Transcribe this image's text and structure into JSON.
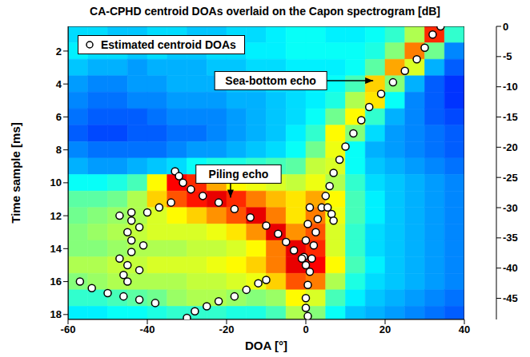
{
  "chart_data": {
    "type": "heatmap",
    "title": "CA-CPHD centroid DOAs overlaid on the Capon spectrogram [dB]",
    "x_label": "DOA [°]",
    "y_label": "Time sample [ms]",
    "xlim": [
      -60,
      40
    ],
    "xticks": [
      -60,
      -40,
      -20,
      0,
      20,
      40
    ],
    "ylim": [
      0.5,
      18.3
    ],
    "yticks": [
      2,
      4,
      6,
      8,
      10,
      12,
      14,
      16,
      18
    ],
    "grid": false,
    "legend": "upper left",
    "heatmap": {
      "x_bins": [
        -60,
        -55,
        -50,
        -45,
        -40,
        -35,
        -30,
        -25,
        -20,
        -15,
        -10,
        -5,
        0,
        5,
        10,
        15,
        20,
        25,
        30,
        35,
        40
      ],
      "y_bins": [
        0.5,
        1.5,
        2.5,
        3.5,
        4.5,
        5.5,
        6.5,
        7.5,
        8.5,
        9.5,
        10.5,
        11.5,
        12.5,
        13.5,
        14.5,
        15.5,
        16.5,
        17.5,
        18.3
      ],
      "values": [
        [
          -32,
          -32,
          -33,
          -33,
          -32,
          -32,
          -33,
          -33,
          -32,
          -32,
          -31,
          -30,
          -30,
          -31,
          -31,
          -30,
          -28,
          -22,
          -8,
          -28
        ],
        [
          -31,
          -32,
          -32,
          -33,
          -32,
          -33,
          -33,
          -32,
          -32,
          -31,
          -31,
          -30,
          -30,
          -30,
          -30,
          -29,
          -24,
          -12,
          -25,
          -36
        ],
        [
          -33,
          -34,
          -34,
          -35,
          -34,
          -34,
          -34,
          -33,
          -33,
          -32,
          -32,
          -31,
          -31,
          -31,
          -30,
          -26,
          -14,
          -20,
          -34,
          -38
        ],
        [
          -35,
          -36,
          -36,
          -35,
          -35,
          -34,
          -34,
          -34,
          -33,
          -33,
          -32,
          -32,
          -31,
          -30,
          -27,
          -16,
          -24,
          -34,
          -38,
          -40
        ],
        [
          -36,
          -37,
          -37,
          -36,
          -36,
          -35,
          -35,
          -35,
          -34,
          -34,
          -33,
          -32,
          -31,
          -29,
          -22,
          -17,
          -30,
          -36,
          -38,
          -40
        ],
        [
          -37,
          -38,
          -38,
          -38,
          -37,
          -36,
          -36,
          -36,
          -35,
          -34,
          -33,
          -32,
          -30,
          -25,
          -18,
          -28,
          -34,
          -36,
          -38,
          -39
        ],
        [
          -38,
          -39,
          -39,
          -38,
          -38,
          -37,
          -37,
          -36,
          -35,
          -34,
          -33,
          -31,
          -28,
          -18,
          -24,
          -32,
          -35,
          -36,
          -37,
          -38
        ],
        [
          -36,
          -37,
          -37,
          -37,
          -37,
          -36,
          -35,
          -35,
          -34,
          -33,
          -32,
          -30,
          -25,
          -19,
          -30,
          -34,
          -35,
          -36,
          -37,
          -38
        ],
        [
          -34,
          -35,
          -35,
          -34,
          -33,
          -32,
          -30,
          -29,
          -29,
          -28,
          -27,
          -26,
          -21,
          -20,
          -30,
          -33,
          -34,
          -35,
          -36,
          -37
        ],
        [
          -30,
          -30,
          -29,
          -27,
          -18,
          -6,
          -8,
          -14,
          -18,
          -19,
          -20,
          -21,
          -19,
          -22,
          -28,
          -32,
          -33,
          -34,
          -35,
          -36
        ],
        [
          -26,
          -26,
          -25,
          -22,
          -16,
          -10,
          -7,
          -5,
          -8,
          -12,
          -15,
          -17,
          -14,
          -18,
          -27,
          -31,
          -33,
          -34,
          -35,
          -36
        ],
        [
          -25,
          -24,
          -23,
          -22,
          -20,
          -18,
          -16,
          -13,
          -10,
          -5,
          -12,
          -17,
          -12,
          -19,
          -27,
          -31,
          -33,
          -34,
          -35,
          -36
        ],
        [
          -24,
          -23,
          -22,
          -21,
          -20,
          -20,
          -20,
          -19,
          -17,
          -13,
          -5,
          -13,
          -10,
          -20,
          -28,
          -32,
          -33,
          -34,
          -35,
          -36
        ],
        [
          -24,
          -24,
          -23,
          -22,
          -22,
          -22,
          -21,
          -21,
          -20,
          -18,
          -12,
          -5,
          -8,
          -20,
          -28,
          -32,
          -33,
          -34,
          -35,
          -36
        ],
        [
          -22,
          -22,
          -21,
          -21,
          -20,
          -20,
          -20,
          -19,
          -18,
          -16,
          -12,
          -5,
          -6,
          -18,
          -27,
          -31,
          -33,
          -34,
          -35,
          -36
        ],
        [
          -24,
          -23,
          -22,
          -22,
          -22,
          -22,
          -21,
          -21,
          -20,
          -19,
          -16,
          -10,
          -12,
          -22,
          -29,
          -32,
          -33,
          -34,
          -35,
          -36
        ],
        [
          -28,
          -28,
          -27,
          -26,
          -25,
          -23,
          -22,
          -22,
          -23,
          -24,
          -23,
          -18,
          -20,
          -27,
          -31,
          -33,
          -34,
          -35,
          -36,
          -37
        ],
        [
          -31,
          -31,
          -30,
          -30,
          -29,
          -28,
          -28,
          -28,
          -29,
          -29,
          -27,
          -22,
          -24,
          -30,
          -33,
          -34,
          -35,
          -36,
          -37,
          -38
        ]
      ]
    },
    "colorbar": {
      "range": [
        -48.5,
        0
      ],
      "ticks": [
        0,
        -5,
        -10,
        -15,
        -20,
        -25,
        -30,
        -35,
        -40,
        -45
      ]
    },
    "series": [
      {
        "name": "Estimated centroid DOAs",
        "type": "scatter",
        "marker": "circle",
        "color": "#ffffff",
        "x": [
          34,
          32,
          30,
          28,
          25,
          22,
          19,
          16,
          14,
          12,
          10,
          8.5,
          7,
          6,
          5,
          4,
          3,
          2.5,
          2,
          1.5,
          1,
          0.5,
          0,
          0,
          0.5,
          5.5,
          6.5,
          7,
          1,
          0.5,
          0,
          -0.5,
          -33,
          -32,
          -31,
          -29,
          -26,
          -22,
          -18,
          -14,
          -10,
          -7,
          -5,
          -3,
          -1,
          0,
          -34,
          -37,
          -40,
          -44,
          -47,
          -44,
          -42,
          -45,
          -44,
          -41,
          -44,
          -47,
          -45,
          -42,
          -46,
          -45,
          -57,
          -54,
          -50,
          -46,
          -42,
          -38,
          -30,
          -28,
          -25,
          -22,
          -18,
          -15,
          -12,
          -10
        ],
        "y": [
          0.5,
          1,
          1.8,
          2.5,
          3.2,
          3.9,
          4.6,
          5.4,
          6.2,
          7,
          7.8,
          8.6,
          9.4,
          10.2,
          10.8,
          11.5,
          12.2,
          13,
          13.8,
          14.6,
          15.4,
          16.2,
          17,
          17.6,
          18.1,
          11.5,
          11.9,
          12.3,
          11.5,
          12.5,
          13.5,
          14.5,
          9.3,
          9.6,
          10,
          10.4,
          10.8,
          11.2,
          11.6,
          12.1,
          12.6,
          13.1,
          13.6,
          14.1,
          14.6,
          15,
          11.2,
          11.5,
          11.8,
          11.8,
          12,
          12.3,
          12.7,
          13,
          13.5,
          13.8,
          14.2,
          14.6,
          15,
          15.3,
          15.6,
          16,
          16,
          16.4,
          16.7,
          16.9,
          17.1,
          17.3,
          18.2,
          17.8,
          17.5,
          17.2,
          16.9,
          16.5,
          16.1,
          15.9
        ]
      }
    ],
    "annotations": [
      {
        "text": "Sea-bottom echo",
        "x": 17,
        "y": 3.8
      },
      {
        "text": "Piling echo",
        "x": -19,
        "y": 10.9
      }
    ]
  }
}
